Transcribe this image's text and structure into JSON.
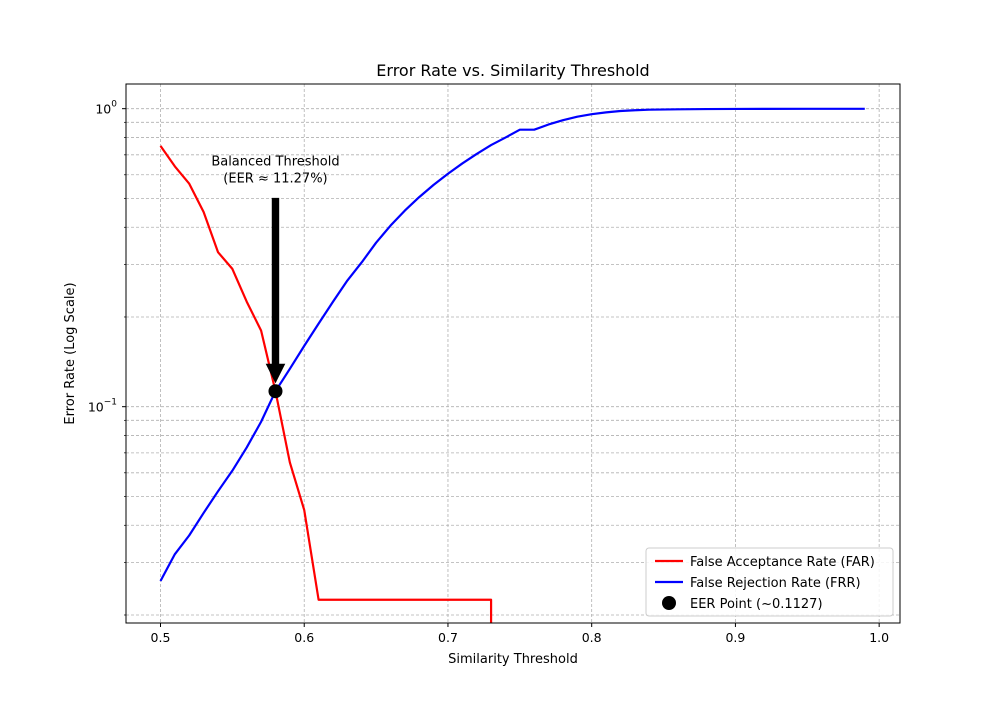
{
  "chart_data": {
    "type": "line",
    "title": "Error Rate vs. Similarity Threshold",
    "xlabel": "Similarity Threshold",
    "ylabel": "Error Rate (Log Scale)",
    "xlim": [
      0.476,
      1.0145
    ],
    "ylim": [
      0.0188,
      1.21
    ],
    "yscale": "log",
    "grid": true,
    "x_ticks": [
      {
        "value": 0.5,
        "label": "0.5"
      },
      {
        "value": 0.6,
        "label": "0.6"
      },
      {
        "value": 0.7,
        "label": "0.7"
      },
      {
        "value": 0.8,
        "label": "0.8"
      },
      {
        "value": 0.9,
        "label": "0.9"
      },
      {
        "value": 1.0,
        "label": "1.0"
      }
    ],
    "y_ticks": [
      {
        "value": 0.1,
        "base": "10",
        "exp": "−1"
      },
      {
        "value": 1.0,
        "base": "10",
        "exp": "0"
      }
    ],
    "series": [
      {
        "name": "False Acceptance Rate (FAR)",
        "color": "#ff0000",
        "x": [
          0.5,
          0.51,
          0.52,
          0.53,
          0.54,
          0.55,
          0.56,
          0.57,
          0.58,
          0.59,
          0.6,
          0.61,
          0.62,
          0.65,
          0.7,
          0.73,
          0.73
        ],
        "y": [
          0.75,
          0.64,
          0.56,
          0.45,
          0.33,
          0.29,
          0.225,
          0.18,
          0.1127,
          0.065,
          0.045,
          0.0225,
          0.0225,
          0.0225,
          0.0225,
          0.0225,
          0.0188
        ]
      },
      {
        "name": "False Rejection Rate (FRR)",
        "color": "#0000ff",
        "x": [
          0.5,
          0.51,
          0.52,
          0.53,
          0.54,
          0.55,
          0.56,
          0.57,
          0.58,
          0.59,
          0.6,
          0.61,
          0.62,
          0.63,
          0.64,
          0.65,
          0.66,
          0.67,
          0.68,
          0.69,
          0.7,
          0.71,
          0.72,
          0.73,
          0.74,
          0.75,
          0.76,
          0.77,
          0.78,
          0.79,
          0.8,
          0.81,
          0.82,
          0.83,
          0.84,
          0.86,
          0.88,
          0.9,
          0.95,
          0.99
        ],
        "y": [
          0.026,
          0.032,
          0.037,
          0.044,
          0.052,
          0.061,
          0.073,
          0.089,
          0.1127,
          0.134,
          0.16,
          0.19,
          0.225,
          0.265,
          0.305,
          0.355,
          0.405,
          0.455,
          0.505,
          0.555,
          0.605,
          0.655,
          0.705,
          0.755,
          0.8,
          0.85,
          0.85,
          0.885,
          0.915,
          0.94,
          0.958,
          0.972,
          0.982,
          0.988,
          0.992,
          0.995,
          0.997,
          0.998,
          0.999,
          0.999
        ]
      }
    ],
    "eer_point": {
      "name": "EER Point (~0.1127)",
      "x": 0.58,
      "y": 0.1127,
      "color": "#000000"
    },
    "annotation": {
      "lines": [
        "Balanced Threshold",
        "(EER ≈ 11.27%)"
      ],
      "text_x": 0.58,
      "text_y": 0.5,
      "target_x": 0.58,
      "target_y": 0.1127
    },
    "legend": {
      "position": "lower-right",
      "items": [
        {
          "label": "False Acceptance Rate (FAR)",
          "kind": "line",
          "color": "#ff0000"
        },
        {
          "label": "False Rejection Rate (FRR)",
          "kind": "line",
          "color": "#0000ff"
        },
        {
          "label": "EER Point (~0.1127)",
          "kind": "marker",
          "color": "#000000"
        }
      ]
    }
  }
}
